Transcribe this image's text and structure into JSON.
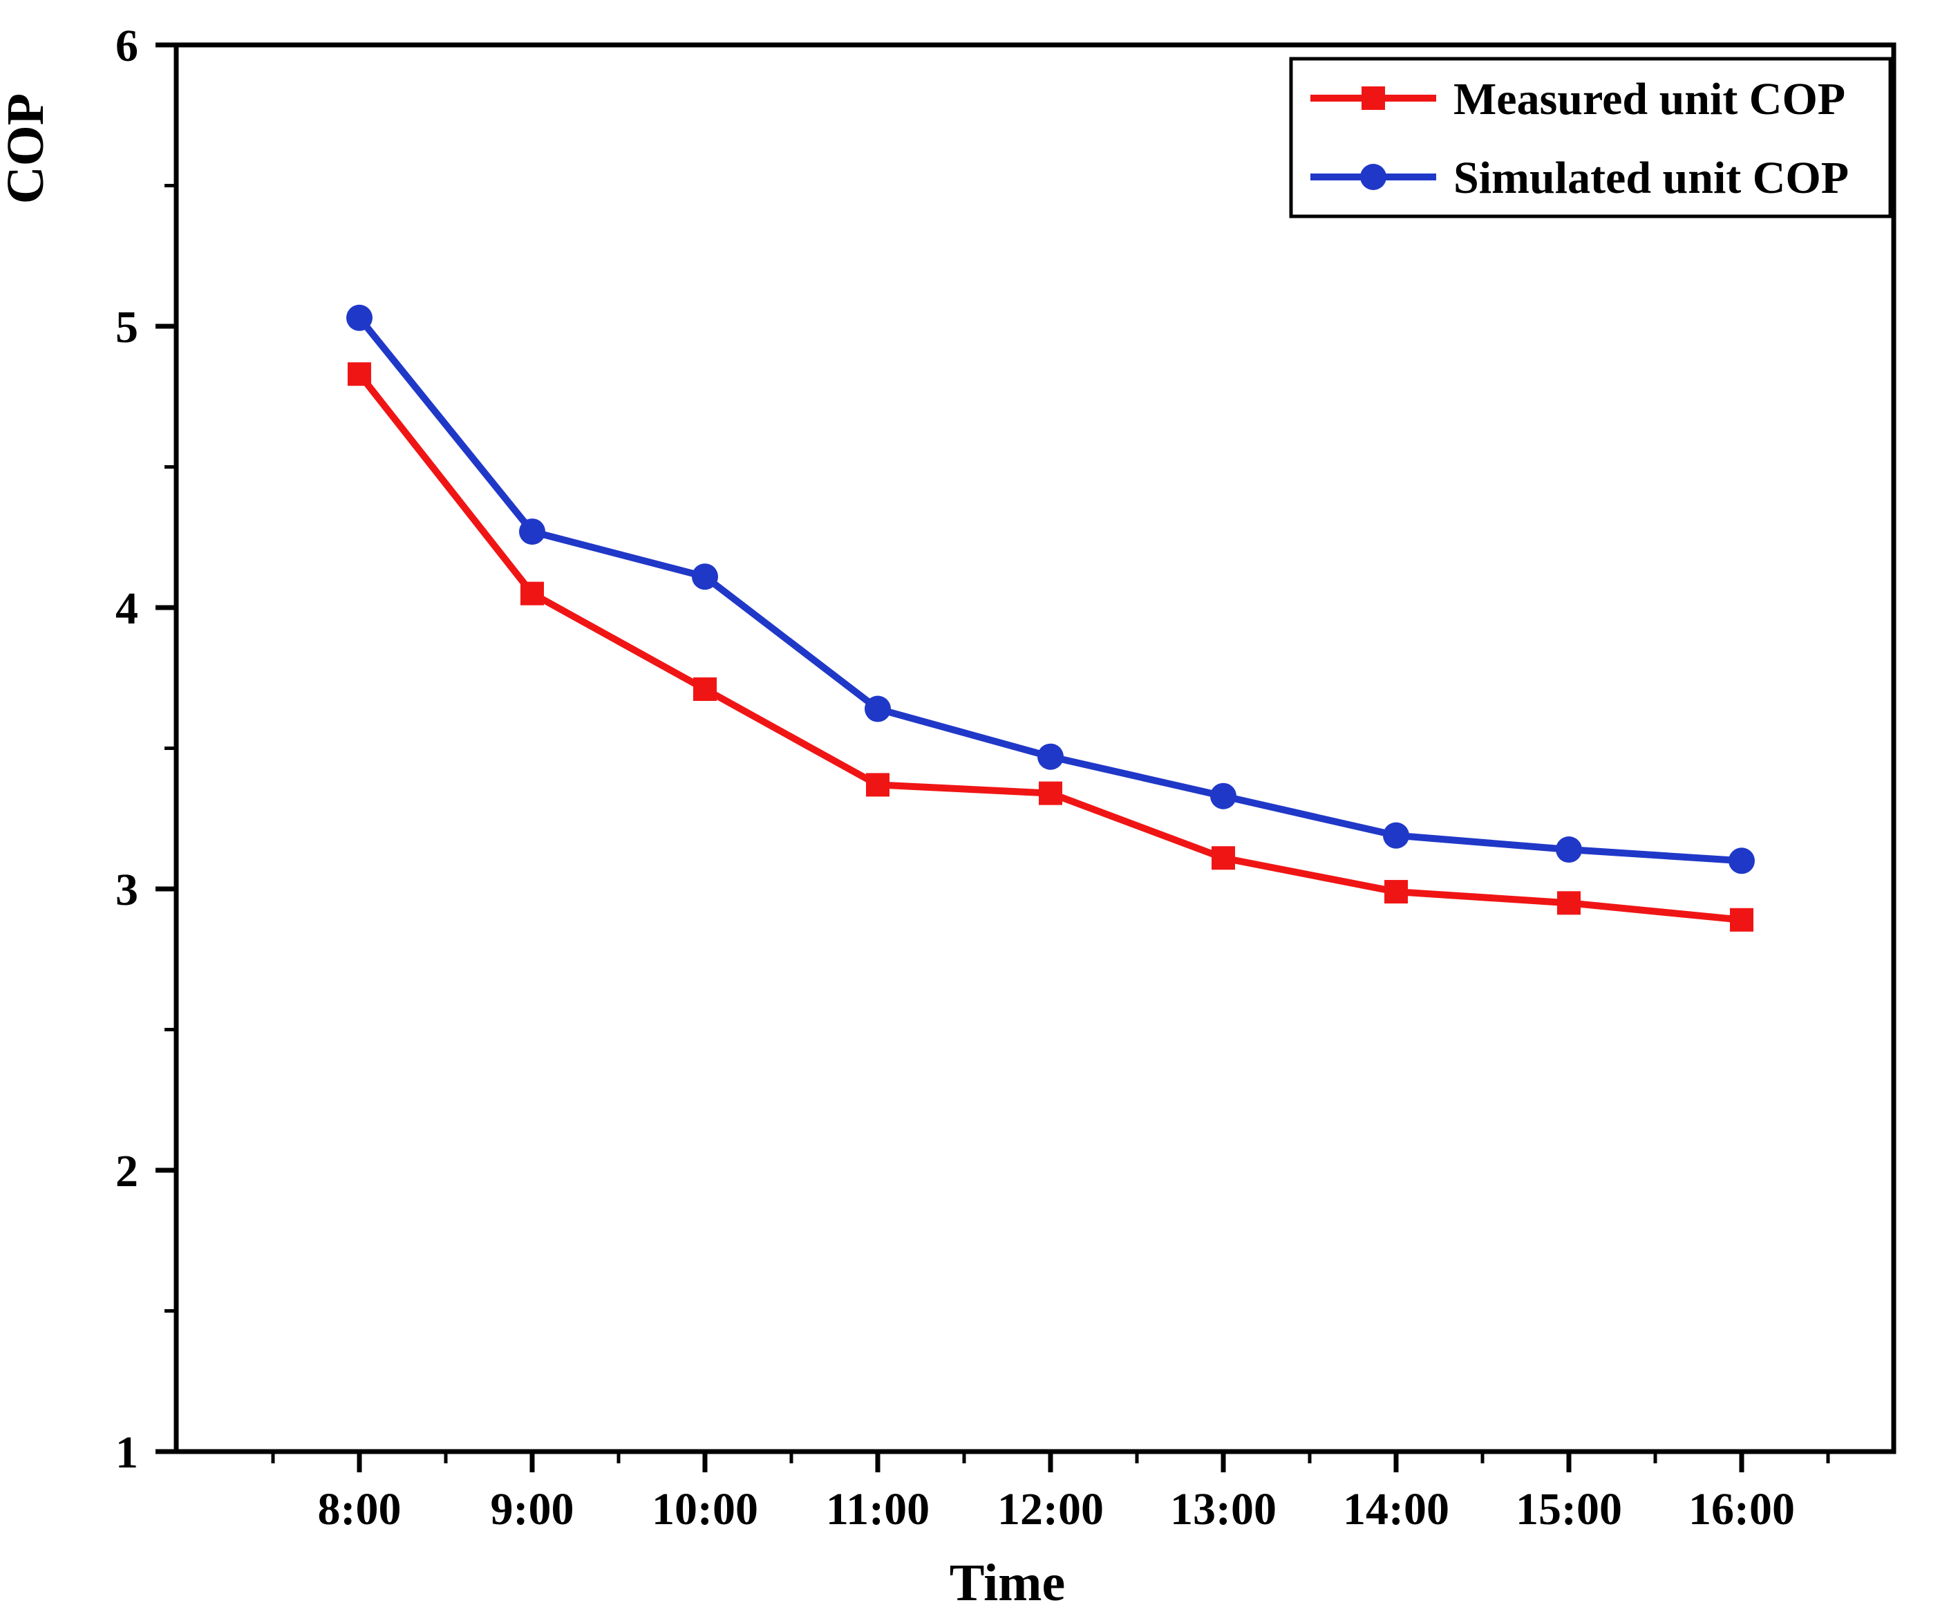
{
  "figure": {
    "background": "#ffffff",
    "axis_color": "#000000",
    "text_color": "#000000"
  },
  "chart_data": {
    "type": "line",
    "title": "",
    "xlabel": "Time",
    "ylabel": "COP",
    "categories": [
      "8:00",
      "9:00",
      "10:00",
      "11:00",
      "12:00",
      "13:00",
      "14:00",
      "15:00",
      "16:00"
    ],
    "ylim": [
      1,
      6
    ],
    "y_ticks": [
      1,
      2,
      3,
      4,
      5,
      6
    ],
    "grid": false,
    "legend_position": "top-right",
    "series": [
      {
        "name": "Measured unit COP",
        "color": "#f01515",
        "marker": "square",
        "values": [
          4.83,
          4.05,
          3.71,
          3.37,
          3.34,
          3.11,
          2.99,
          2.95,
          2.89
        ]
      },
      {
        "name": "Simulated unit COP",
        "color": "#2038c8",
        "marker": "circle",
        "values": [
          5.03,
          4.27,
          4.11,
          3.64,
          3.47,
          3.33,
          3.19,
          3.14,
          3.1
        ]
      }
    ]
  }
}
